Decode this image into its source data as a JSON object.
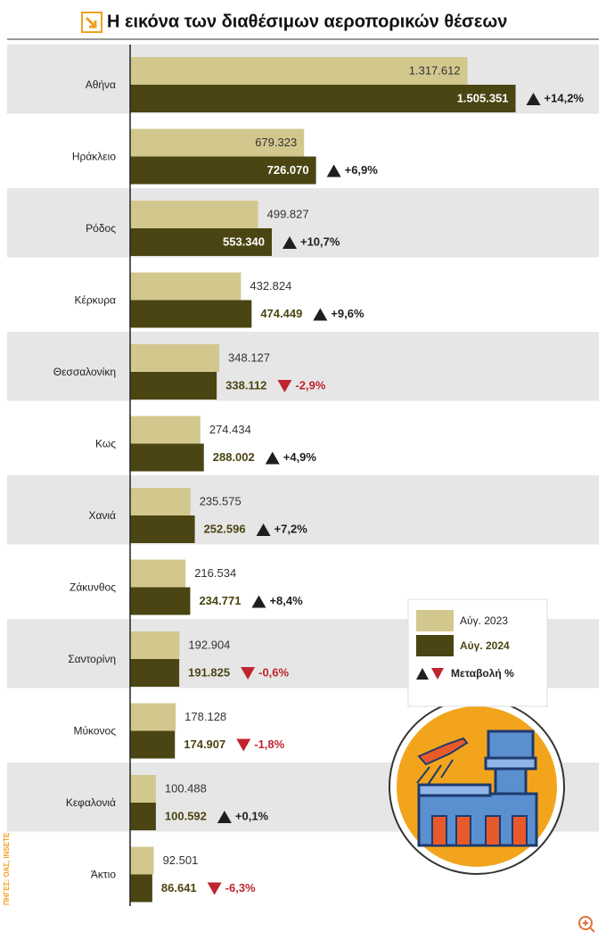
{
  "chart_data": {
    "type": "bar",
    "orientation": "horizontal",
    "title": "Η εικόνα των διαθέσιμων αεροπορικών θέσεων",
    "source": "ΠΗΓΕΣ: ΟΑΣ, INSETE",
    "categories": [
      "Αθήνα",
      "Ηράκλειο",
      "Ρόδος",
      "Κέρκυρα",
      "Θεσσαλονίκη",
      "Κως",
      "Χανιά",
      "Ζάκυνθος",
      "Σαντορίνη",
      "Μύκονος",
      "Κεφαλονιά",
      "Άκτιο"
    ],
    "series": [
      {
        "name": "Αύγ. 2023",
        "color": "#d2c88e",
        "values": [
          1317612,
          679323,
          499827,
          432824,
          348127,
          274434,
          235575,
          216534,
          192904,
          178128,
          100488,
          92501
        ],
        "value_labels": [
          "1.317.612",
          "679.323",
          "499.827",
          "432.824",
          "348.127",
          "274.434",
          "235.575",
          "216.534",
          "192.904",
          "178.128",
          "100.488",
          "92.501"
        ]
      },
      {
        "name": "Αύγ. 2024",
        "color": "#4a4512",
        "values": [
          1505351,
          726070,
          553340,
          474449,
          338112,
          288002,
          252596,
          234771,
          191825,
          174907,
          100592,
          86641
        ],
        "value_labels": [
          "1.505.351",
          "726.070",
          "553.340",
          "474.449",
          "338.112",
          "288.002",
          "252.596",
          "234.771",
          "191.825",
          "174.907",
          "100.592",
          "86.641"
        ]
      },
      {
        "name": "Μεταβολή %",
        "up_color": "#1e1e1e",
        "down_color": "#c0242e",
        "values": [
          14.2,
          6.9,
          10.7,
          9.6,
          -2.9,
          4.9,
          7.2,
          8.4,
          -0.6,
          -1.8,
          0.1,
          -6.3
        ],
        "value_labels": [
          "+14,2%",
          "+6,9%",
          "+10,7%",
          "+9,6%",
          "-2,9%",
          "+4,9%",
          "+7,2%",
          "+8,4%",
          "-0,6%",
          "-1,8%",
          "+0,1%",
          "-6,3%"
        ]
      }
    ],
    "xlim": [
      0,
      1500000
    ],
    "row_shading": true
  }
}
